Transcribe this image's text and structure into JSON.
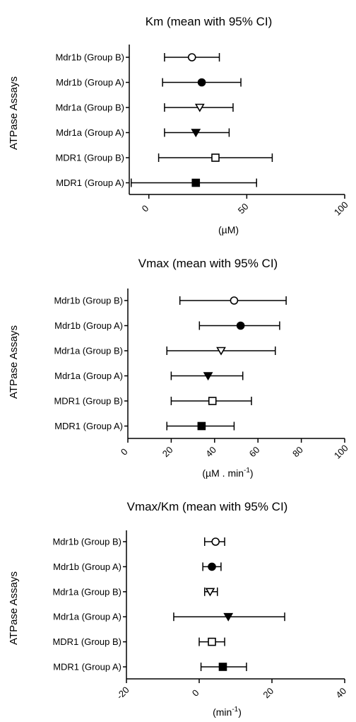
{
  "chart_data": [
    {
      "type": "scatter",
      "title": "Km (mean with 95% CI)",
      "xlabel": "(µM)",
      "xlabel_sup": "",
      "ylabel": "ATPase Assays",
      "xlim": [
        -10,
        100
      ],
      "xticks": [
        0,
        50,
        100
      ],
      "tick_labels": [
        "0",
        "50",
        "100"
      ],
      "grid": false,
      "categories": [
        "Mdr1b (Group B)",
        "Mdr1b (Group A)",
        "Mdr1a (Group B)",
        "Mdr1a (Group A)",
        "MDR1 (Group B)",
        "MDR1 (Group A)"
      ],
      "markers": [
        "circle-open",
        "circle-filled",
        "triangle-open",
        "triangle-filled",
        "square-open",
        "square-filled"
      ],
      "means": [
        22,
        27,
        26,
        24,
        34,
        24
      ],
      "ci_low": [
        8,
        7,
        8,
        8,
        5,
        -9
      ],
      "ci_high": [
        36,
        47,
        43,
        41,
        63,
        55
      ]
    },
    {
      "type": "scatter",
      "title": "Vmax  (mean with 95% CI)",
      "xlabel": "(µM . min",
      "xlabel_sup": "-1",
      "xlabel_end": ")",
      "ylabel": "ATPase Assays",
      "xlim": [
        0,
        100
      ],
      "xticks": [
        0,
        20,
        40,
        60,
        80,
        100
      ],
      "tick_labels": [
        "0",
        "20",
        "40",
        "60",
        "80",
        "100"
      ],
      "grid": false,
      "categories": [
        "Mdr1b (Group B)",
        "Mdr1b (Group A)",
        "Mdr1a (Group B)",
        "Mdr1a (Group A)",
        "MDR1 (Group B)",
        "MDR1 (Group A)"
      ],
      "markers": [
        "circle-open",
        "circle-filled",
        "triangle-open",
        "triangle-filled",
        "square-open",
        "square-filled"
      ],
      "means": [
        49,
        52,
        43,
        37,
        39,
        34
      ],
      "ci_low": [
        24,
        33,
        18,
        20,
        20,
        18
      ],
      "ci_high": [
        73,
        70,
        68,
        53,
        57,
        49
      ]
    },
    {
      "type": "scatter",
      "title": "Vmax/Km (mean with 95% CI)",
      "xlabel": "(min",
      "xlabel_sup": "-1",
      "xlabel_end": ")",
      "ylabel": "ATPase Assays",
      "xlim": [
        -20,
        40
      ],
      "xticks": [
        -20,
        0,
        20,
        40
      ],
      "tick_labels": [
        "-20",
        "0",
        "20",
        "40"
      ],
      "grid": false,
      "categories": [
        "Mdr1b (Group B)",
        "Mdr1b (Group A)",
        "Mdr1a (Group B)",
        "Mdr1a (Group A)",
        "MDR1 (Group B)",
        "MDR1 (Group A)"
      ],
      "markers": [
        "circle-open",
        "circle-filled",
        "triangle-open",
        "triangle-filled",
        "square-open",
        "square-filled"
      ],
      "means": [
        4.5,
        3.5,
        3,
        8,
        3.5,
        6.5
      ],
      "ci_low": [
        1.5,
        1,
        1.5,
        -7,
        0,
        0.5
      ],
      "ci_high": [
        7,
        6,
        5,
        23.5,
        7,
        13
      ]
    }
  ]
}
